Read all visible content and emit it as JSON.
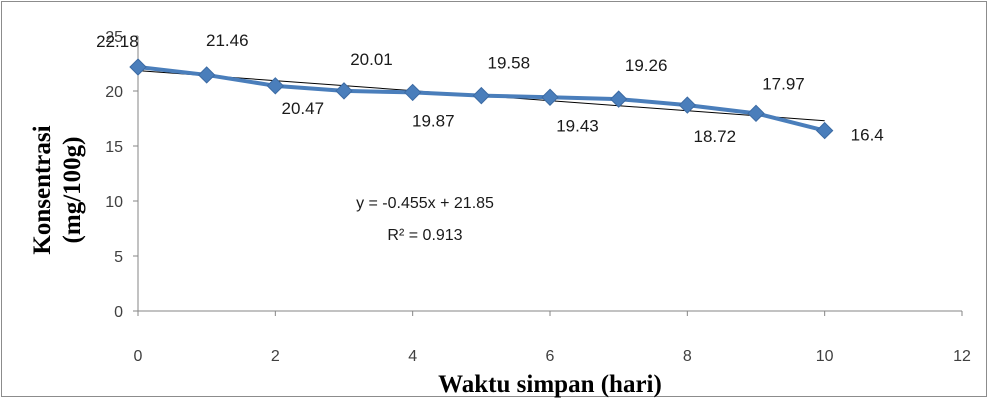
{
  "chart_data": {
    "type": "line",
    "title": "",
    "xlabel": "Waktu simpan (hari)",
    "ylabel_lines": [
      "Konsentrasi",
      "(mg/100g)"
    ],
    "xlim": [
      0,
      12
    ],
    "ylim": [
      0,
      25
    ],
    "x_ticks": [
      0,
      2,
      4,
      6,
      8,
      10,
      12
    ],
    "y_ticks": [
      0,
      5,
      10,
      15,
      20,
      25
    ],
    "grid": false,
    "legend": "none",
    "series": [
      {
        "x": [
          0,
          1,
          2,
          3,
          4,
          5,
          6,
          7,
          8,
          9,
          10
        ],
        "y": [
          22.18,
          21.46,
          20.47,
          20.01,
          19.87,
          19.58,
          19.43,
          19.26,
          18.72,
          17.97,
          16.4
        ],
        "data_labels": [
          "22.18",
          "21.46",
          "20.47",
          "20.01",
          "19.87",
          "19.58",
          "19.43",
          "19.26",
          "18.72",
          "17.97",
          "16.4"
        ],
        "color": "#4a7ebb",
        "marker": "diamond"
      }
    ],
    "trendline": {
      "type": "linear",
      "slope": -0.455,
      "intercept": 21.85,
      "color": "#000000",
      "equation_text": "y = -0.455x + 21.85",
      "r2_text": "R² = 0.913"
    }
  }
}
